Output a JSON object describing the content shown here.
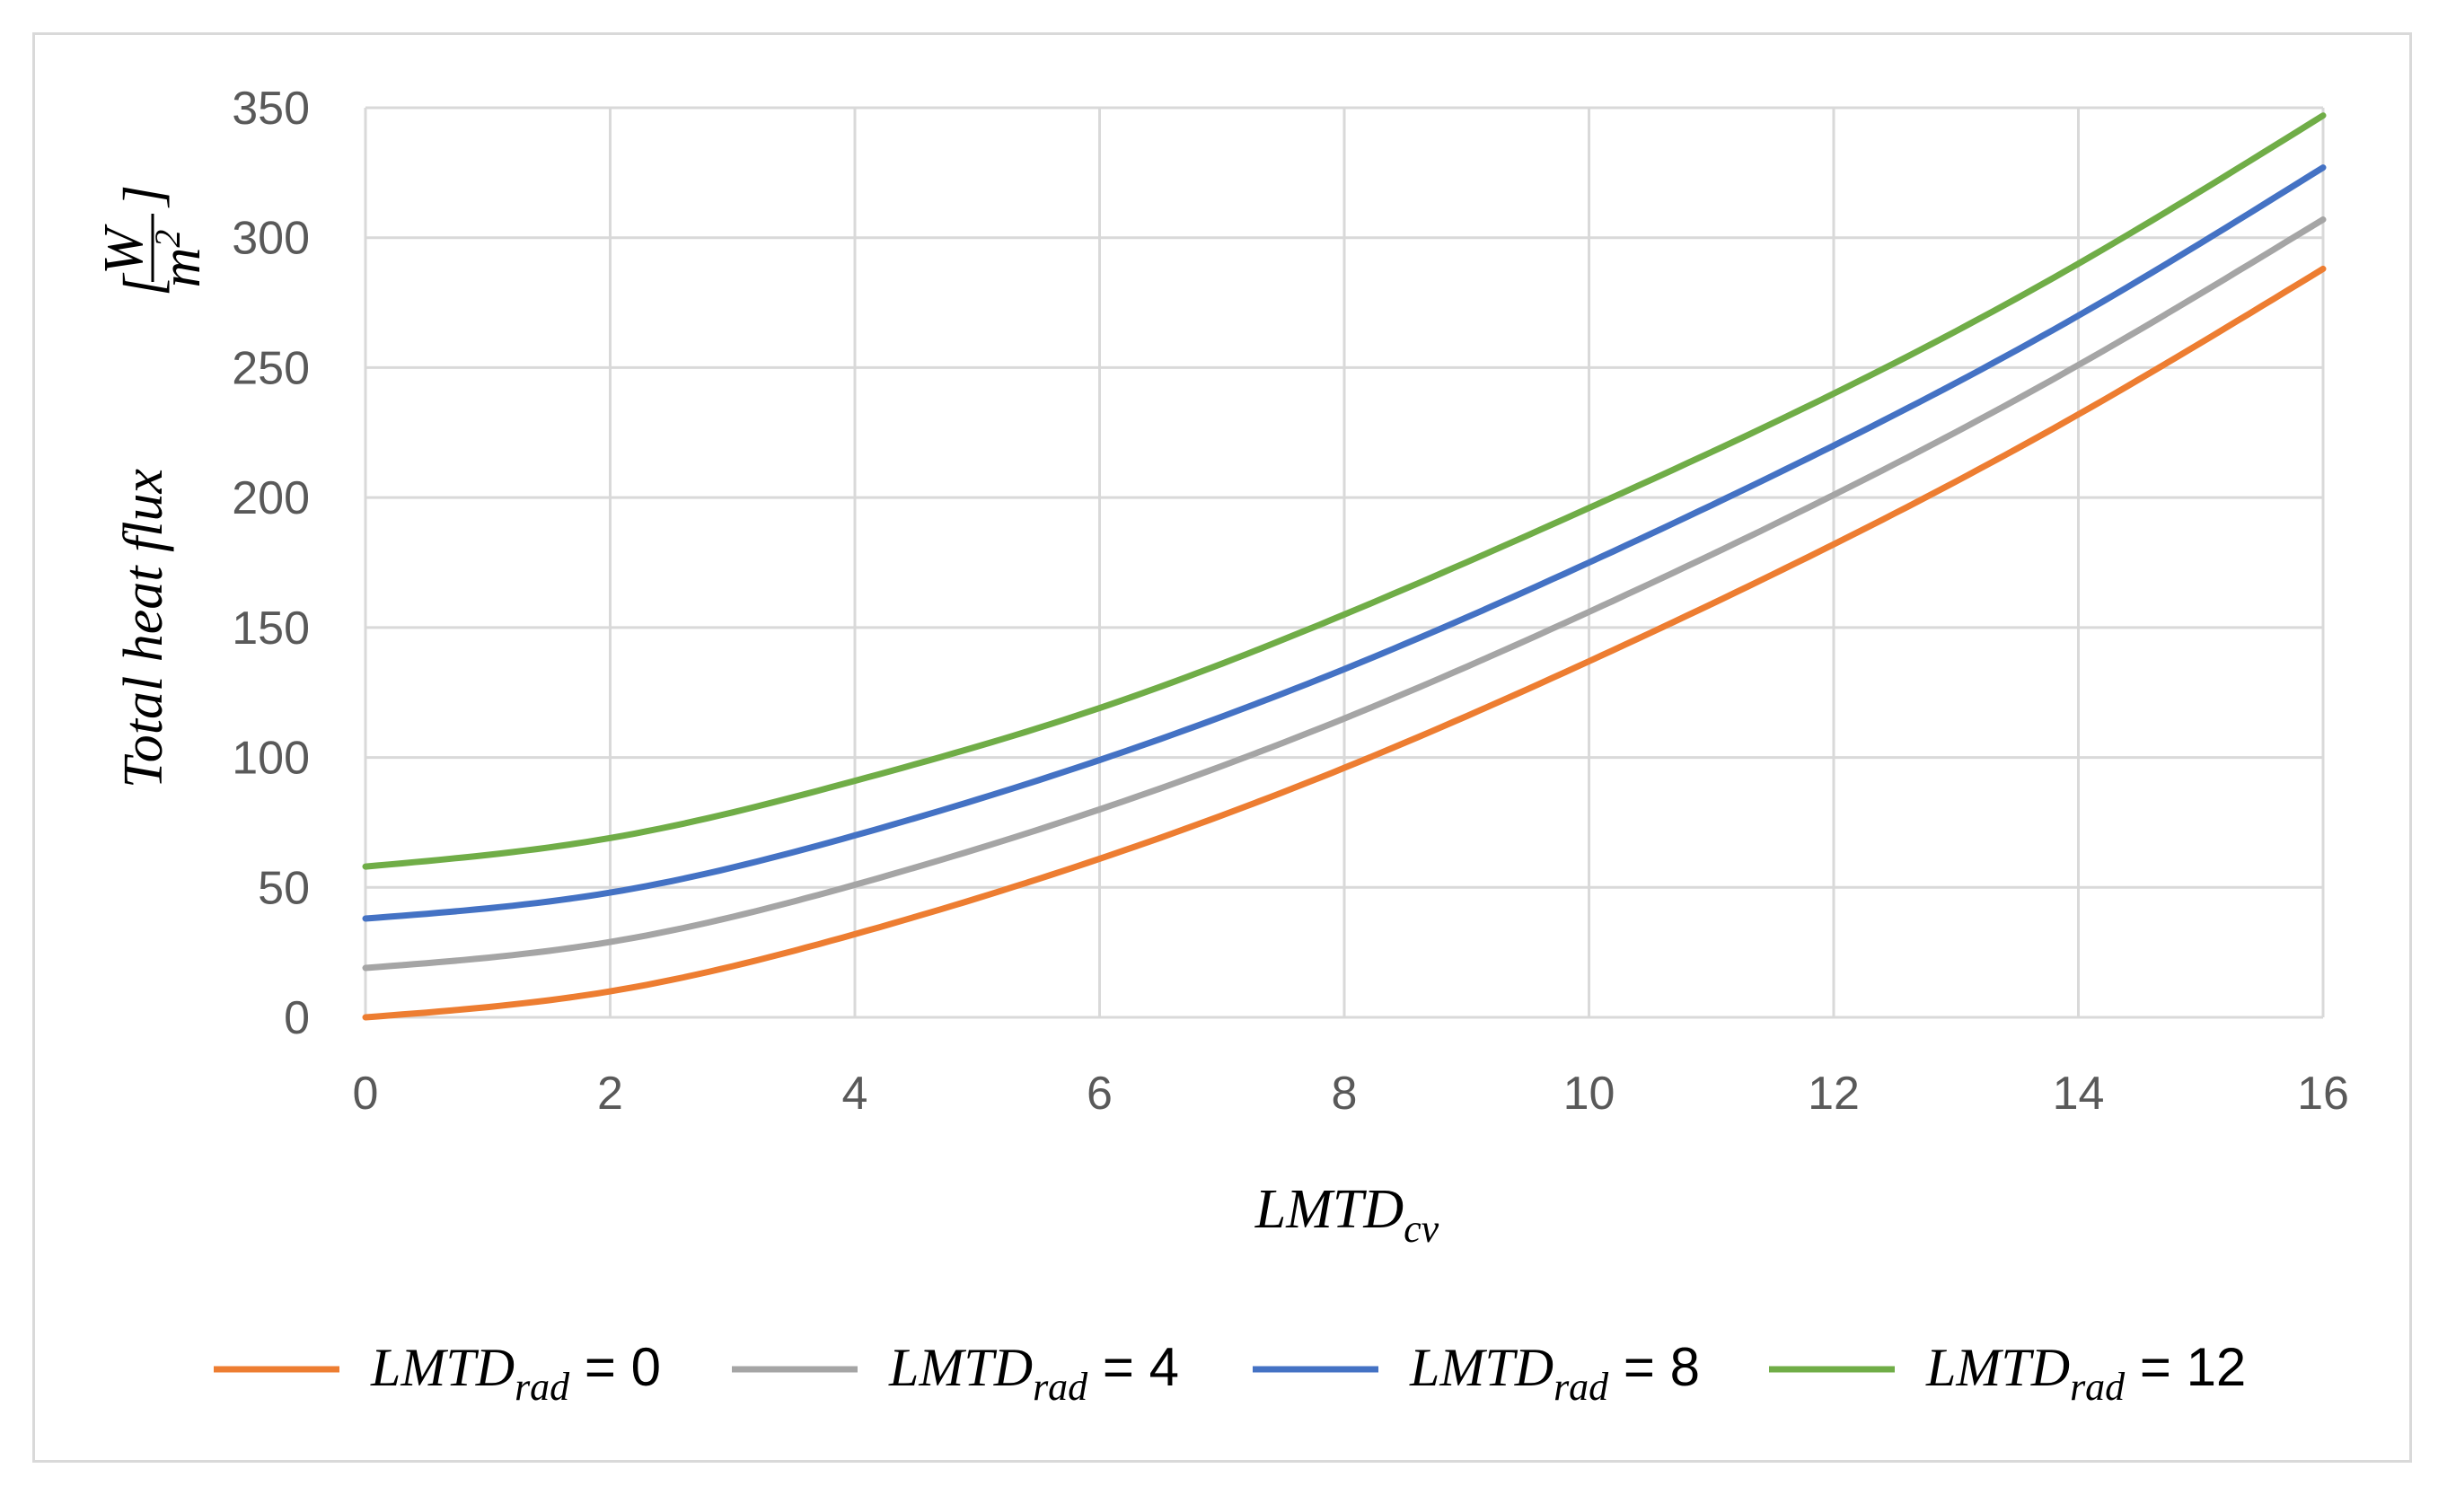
{
  "chart_data": {
    "type": "line",
    "title": "",
    "xlabel": {
      "main": "LMTD",
      "sub": "cv"
    },
    "ylabel": {
      "text": "Total heat flux",
      "unit_num": "W",
      "unit_den": "m",
      "unit_den_exp": "2"
    },
    "xlim": [
      0,
      16
    ],
    "ylim": [
      0,
      350
    ],
    "xticks": [
      0,
      2,
      4,
      6,
      8,
      10,
      12,
      14,
      16
    ],
    "yticks": [
      0,
      50,
      100,
      150,
      200,
      250,
      300,
      350
    ],
    "grid": true,
    "legend_position": "bottom",
    "x": [
      0,
      2,
      4,
      6,
      8,
      10,
      12,
      14,
      16
    ],
    "series": [
      {
        "name": "LMTD_rad = 0",
        "label_main": "LMTD",
        "label_sub": "rad",
        "label_eq": " = 0",
        "color": "#ED7D31",
        "values": [
          0,
          10,
          32,
          61,
          96,
          137,
          182,
          232,
          288
        ]
      },
      {
        "name": "LMTD_rad = 4",
        "label_main": "LMTD",
        "label_sub": "rad",
        "label_eq": " = 4",
        "color": "#A5A5A5",
        "values": [
          19,
          29,
          51,
          80,
          115,
          156,
          201,
          251,
          307
        ]
      },
      {
        "name": "LMTD_rad = 8",
        "label_main": "LMTD",
        "label_sub": "rad",
        "label_eq": " = 8",
        "color": "#4472C4",
        "values": [
          38,
          48,
          70,
          99,
          134,
          175,
          220,
          270,
          327
        ]
      },
      {
        "name": "LMTD_rad = 12",
        "label_main": "LMTD",
        "label_sub": "rad",
        "label_eq": " = 12",
        "color": "#70AD47",
        "values": [
          58,
          69,
          91,
          119,
          155,
          196,
          240,
          290,
          347
        ]
      }
    ]
  }
}
